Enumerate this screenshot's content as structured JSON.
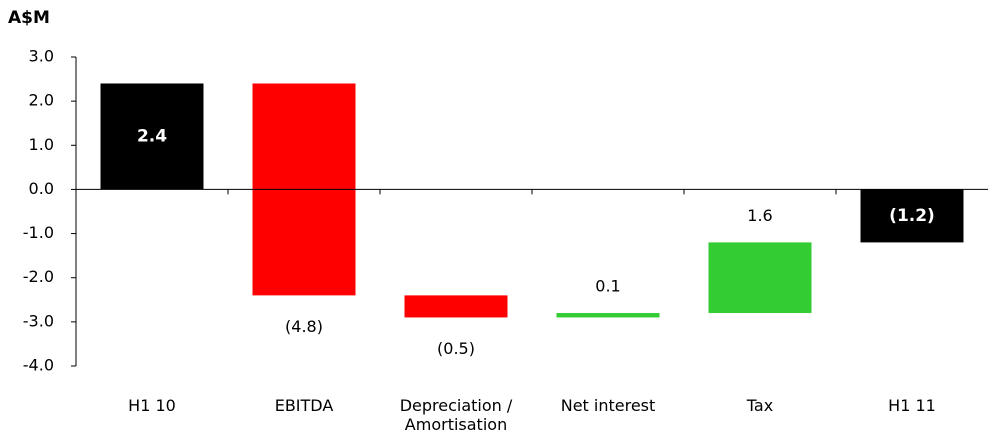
{
  "chart_data": {
    "type": "waterfall",
    "y_axis_label": "A$M",
    "categories": [
      "H1 10",
      "EBITDA",
      "Depreciation / Amortisation",
      "Net interest",
      "Tax",
      "H1 11"
    ],
    "values": [
      2.4,
      -4.8,
      -0.5,
      0.1,
      1.6,
      -1.2
    ],
    "value_labels": [
      "2.4",
      "(4.8)",
      "(0.5)",
      "0.1",
      "1.6",
      "(1.2)"
    ],
    "totals": [
      true,
      false,
      false,
      false,
      false,
      true
    ],
    "colors": [
      "#000000",
      "#ff0000",
      "#ff0000",
      "#33cc33",
      "#33cc33",
      "#000000"
    ],
    "ylim": [
      -4,
      3
    ],
    "yticks": [
      {
        "value": 3,
        "label": "3.0"
      },
      {
        "value": 2,
        "label": "2.0"
      },
      {
        "value": 1,
        "label": "1.0"
      },
      {
        "value": 0,
        "label": "0.0"
      },
      {
        "value": -1,
        "label": "-1.0"
      },
      {
        "value": -2,
        "label": "-2.0"
      },
      {
        "value": -3,
        "label": "-3.0"
      },
      {
        "value": -4,
        "label": "-4.0"
      }
    ]
  }
}
